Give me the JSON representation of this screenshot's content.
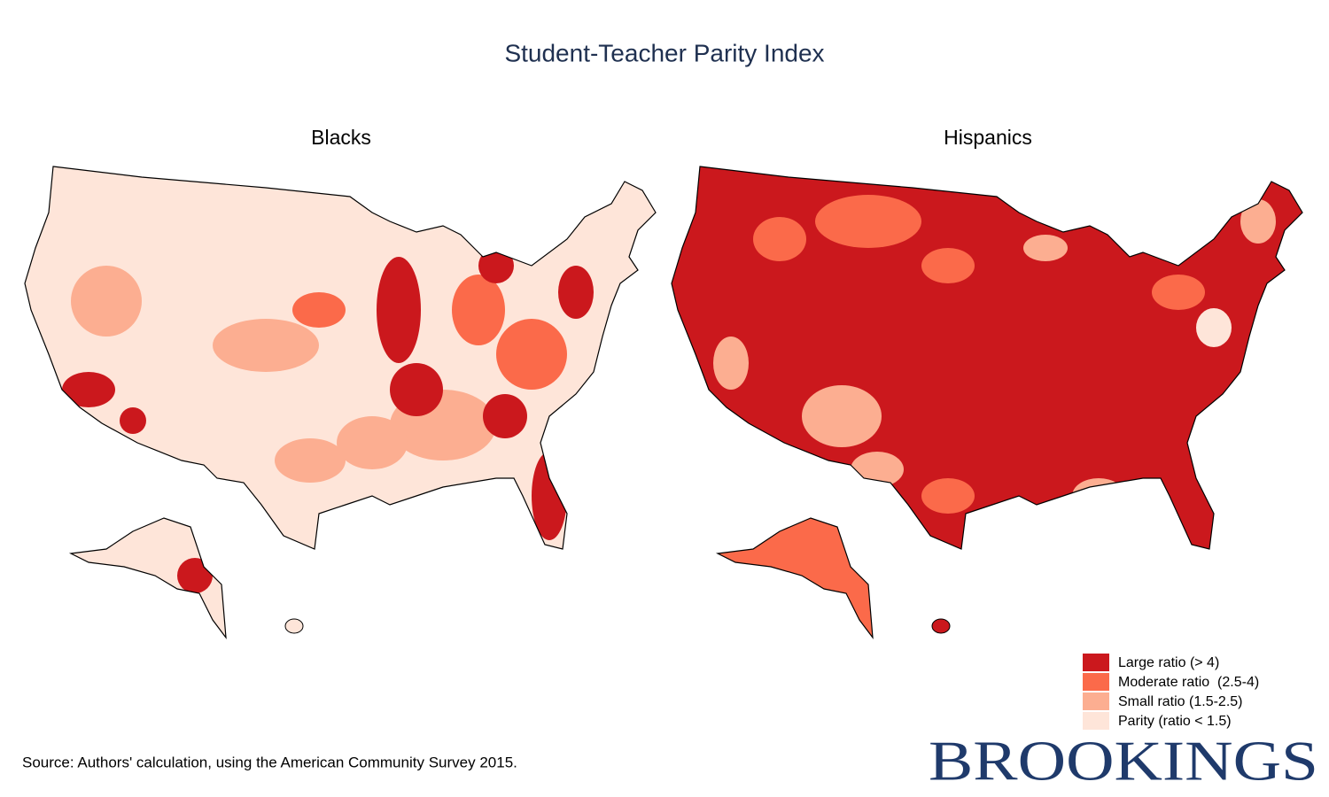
{
  "title": "Student-Teacher Parity Index",
  "maps": [
    {
      "title": "Blacks"
    },
    {
      "title": "Hispanics"
    }
  ],
  "legend": [
    {
      "label": "Large ratio (> 4)",
      "color": "#cb181d"
    },
    {
      "label": "Moderate ratio  (2.5-4)",
      "color": "#fb6a4a"
    },
    {
      "label": "Small ratio (1.5-2.5)",
      "color": "#fcae91"
    },
    {
      "label": "Parity (ratio < 1.5)",
      "color": "#fee5d9"
    }
  ],
  "source": "Source: Authors' calculation, using the American Community Survey 2015.",
  "logo": "BROOKINGS"
}
